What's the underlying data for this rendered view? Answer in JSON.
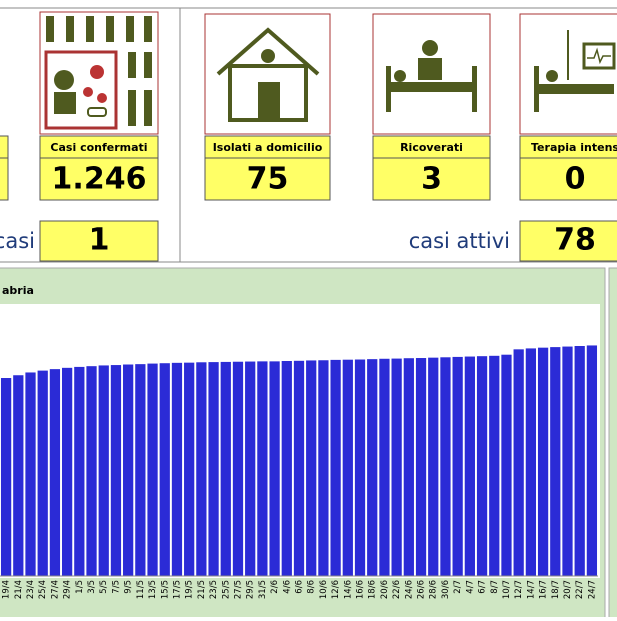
{
  "panels": [
    {
      "label": "Casi confermati",
      "value": "1.246"
    },
    {
      "label": "Isolati a domicilio",
      "value": "75"
    },
    {
      "label": "Ricoverati",
      "value": "3"
    },
    {
      "label": "Terapia intens",
      "value": "0"
    }
  ],
  "summary": [
    {
      "label": "casi",
      "value": "1"
    },
    {
      "label": "casi attivi",
      "value": "78"
    }
  ],
  "chart_data": {
    "type": "bar",
    "title": "abria",
    "categories": [
      "19/4",
      "21/4",
      "23/4",
      "25/4",
      "27/4",
      "29/4",
      "1/5",
      "3/5",
      "5/5",
      "7/5",
      "9/5",
      "11/5",
      "13/5",
      "15/5",
      "17/5",
      "19/5",
      "21/5",
      "23/5",
      "25/5",
      "27/5",
      "29/5",
      "31/5",
      "2/6",
      "4/6",
      "6/6",
      "8/6",
      "10/6",
      "12/6",
      "14/6",
      "16/6",
      "18/6",
      "20/6",
      "22/6",
      "24/6",
      "26/6",
      "28/6",
      "30/6",
      "2/7",
      "4/7",
      "6/7",
      "8/7",
      "10/7",
      "12/7",
      "14/7",
      "16/7",
      "18/7",
      "20/7",
      "22/7",
      "24/7"
    ],
    "values": [
      1070,
      1085,
      1100,
      1110,
      1118,
      1125,
      1130,
      1134,
      1138,
      1140,
      1143,
      1145,
      1148,
      1150,
      1152,
      1153,
      1155,
      1156,
      1157,
      1158,
      1159,
      1160,
      1160,
      1162,
      1163,
      1165,
      1166,
      1168,
      1169,
      1170,
      1172,
      1174,
      1175,
      1177,
      1178,
      1180,
      1182,
      1184,
      1186,
      1188,
      1190,
      1196,
      1225,
      1230,
      1234,
      1237,
      1240,
      1243,
      1246
    ],
    "color": "#2b2bd6",
    "ylim": [
      0,
      1470
    ]
  }
}
